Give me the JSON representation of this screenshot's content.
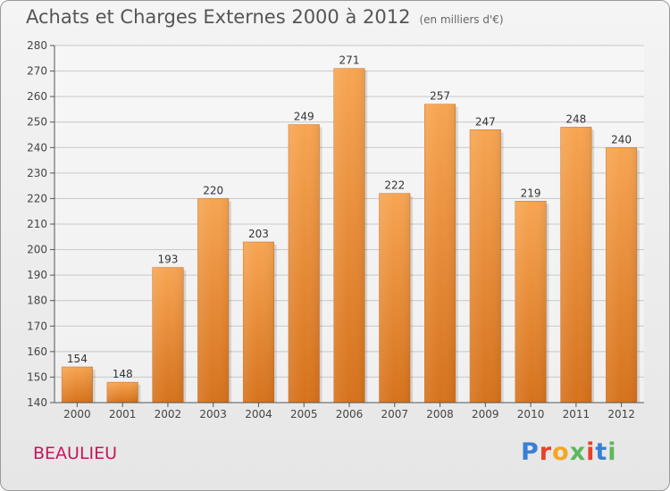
{
  "header": {
    "title": "Achats et Charges Externes 2000 à 2012",
    "subtitle": "(en milliers d'€)"
  },
  "footer": {
    "city": "BEAULIEU",
    "logo_letters": [
      "P",
      "r",
      "o",
      "x",
      "i",
      "t",
      "i"
    ],
    "logo_colors": [
      "#3a7fd5",
      "#e8412c",
      "#f5a623",
      "#5cb85c",
      "#e8412c",
      "#3a7fd5",
      "#5cb85c"
    ]
  },
  "chart_data": {
    "type": "bar",
    "title": "Achats et Charges Externes 2000 à 2012",
    "categories": [
      "2000",
      "2001",
      "2002",
      "2003",
      "2004",
      "2005",
      "2006",
      "2007",
      "2008",
      "2009",
      "2010",
      "2011",
      "2012"
    ],
    "values": [
      154,
      148,
      193,
      220,
      203,
      249,
      271,
      222,
      257,
      247,
      219,
      248,
      240
    ],
    "data_labels": [
      "154",
      "148",
      "193",
      "220",
      "203",
      "249",
      "271",
      "222",
      "257",
      "247",
      "219",
      "248",
      "240"
    ],
    "xlabel": "",
    "ylabel": "",
    "ylim": [
      140,
      280
    ],
    "yticks": [
      140,
      150,
      160,
      170,
      180,
      190,
      200,
      210,
      220,
      230,
      240,
      250,
      260,
      270,
      280
    ],
    "ytick_labels": [
      "140",
      "150",
      "160",
      "170",
      "180",
      "190",
      "200",
      "210",
      "220",
      "230",
      "240",
      "250",
      "260",
      "270",
      "280"
    ],
    "grid": true,
    "bar_color_top": "#f7a552",
    "bar_color_bottom": "#d6721c"
  }
}
